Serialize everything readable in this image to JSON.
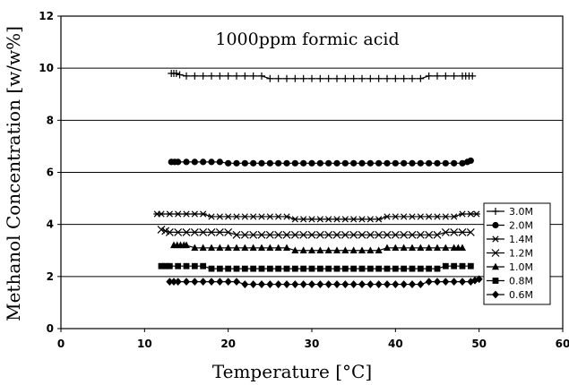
{
  "chart_data": {
    "type": "scatter",
    "title": "1000ppm formic acid",
    "xlabel": "Temperature [°C]",
    "ylabel": "Methanol Concentration [w/w%]",
    "xlim": [
      0,
      60
    ],
    "ylim": [
      0,
      12
    ],
    "x_ticks": [
      "0",
      "10",
      "20",
      "30",
      "40",
      "50",
      "60"
    ],
    "y_ticks": [
      "0",
      "2",
      "4",
      "6",
      "8",
      "10",
      "12"
    ],
    "grid": "horizontal",
    "legend_position": "right",
    "series": [
      {
        "name": "3.0M",
        "marker": "plus",
        "color": "#000000",
        "x": [
          13.2,
          13.5,
          13.8,
          14.2,
          15,
          16,
          17,
          18,
          19,
          20,
          21,
          22,
          23,
          24,
          25,
          26,
          27,
          28,
          29,
          30,
          31,
          32,
          33,
          34,
          35,
          36,
          37,
          38,
          39,
          40,
          41,
          42,
          43,
          44,
          45,
          46,
          47,
          48,
          48.4,
          48.8,
          49.2
        ],
        "y": [
          9.8,
          9.8,
          9.8,
          9.75,
          9.7,
          9.7,
          9.7,
          9.7,
          9.7,
          9.7,
          9.7,
          9.7,
          9.7,
          9.7,
          9.6,
          9.6,
          9.6,
          9.6,
          9.6,
          9.6,
          9.6,
          9.6,
          9.6,
          9.6,
          9.6,
          9.6,
          9.6,
          9.6,
          9.6,
          9.6,
          9.6,
          9.6,
          9.6,
          9.7,
          9.7,
          9.7,
          9.7,
          9.7,
          9.7,
          9.7,
          9.7
        ]
      },
      {
        "name": "2.0M",
        "marker": "circle",
        "color": "#000000",
        "x": [
          13.2,
          13.6,
          14,
          15,
          16,
          17,
          18,
          19,
          20,
          21,
          22,
          23,
          24,
          25,
          26,
          27,
          28,
          29,
          30,
          31,
          32,
          33,
          34,
          35,
          36,
          37,
          38,
          39,
          40,
          41,
          42,
          43,
          44,
          45,
          46,
          47,
          48,
          48.6,
          49
        ],
        "y": [
          6.4,
          6.4,
          6.4,
          6.4,
          6.4,
          6.4,
          6.4,
          6.4,
          6.35,
          6.35,
          6.35,
          6.35,
          6.35,
          6.35,
          6.35,
          6.35,
          6.35,
          6.35,
          6.35,
          6.35,
          6.35,
          6.35,
          6.35,
          6.35,
          6.35,
          6.35,
          6.35,
          6.35,
          6.35,
          6.35,
          6.35,
          6.35,
          6.35,
          6.35,
          6.35,
          6.35,
          6.35,
          6.4,
          6.45
        ]
      },
      {
        "name": "1.4M",
        "marker": "star",
        "color": "#000000",
        "x": [
          11.5,
          12,
          13,
          14,
          15,
          16,
          17,
          18,
          19,
          20,
          21,
          22,
          23,
          24,
          25,
          26,
          27,
          28,
          29,
          30,
          31,
          32,
          33,
          34,
          35,
          36,
          37,
          38,
          39,
          40,
          41,
          42,
          43,
          44,
          45,
          46,
          47,
          48,
          49,
          49.7
        ],
        "y": [
          4.4,
          4.4,
          4.4,
          4.4,
          4.4,
          4.4,
          4.4,
          4.3,
          4.3,
          4.3,
          4.3,
          4.3,
          4.3,
          4.3,
          4.3,
          4.3,
          4.3,
          4.2,
          4.2,
          4.2,
          4.2,
          4.2,
          4.2,
          4.2,
          4.2,
          4.2,
          4.2,
          4.2,
          4.3,
          4.3,
          4.3,
          4.3,
          4.3,
          4.3,
          4.3,
          4.3,
          4.3,
          4.4,
          4.4,
          4.4
        ]
      },
      {
        "name": "1.2M",
        "marker": "x",
        "color": "#000000",
        "x": [
          12,
          12.5,
          13,
          14,
          15,
          16,
          17,
          18,
          19,
          20,
          21,
          22,
          23,
          24,
          25,
          26,
          27,
          28,
          29,
          30,
          31,
          32,
          33,
          34,
          35,
          36,
          37,
          38,
          39,
          40,
          41,
          42,
          43,
          44,
          45,
          46,
          47,
          48,
          49
        ],
        "y": [
          3.8,
          3.75,
          3.7,
          3.7,
          3.7,
          3.7,
          3.7,
          3.7,
          3.7,
          3.7,
          3.6,
          3.6,
          3.6,
          3.6,
          3.6,
          3.6,
          3.6,
          3.6,
          3.6,
          3.6,
          3.6,
          3.6,
          3.6,
          3.6,
          3.6,
          3.6,
          3.6,
          3.6,
          3.6,
          3.6,
          3.6,
          3.6,
          3.6,
          3.6,
          3.6,
          3.7,
          3.7,
          3.7,
          3.7
        ]
      },
      {
        "name": "1.0M",
        "marker": "triangle",
        "color": "#000000",
        "x": [
          13.5,
          13.9,
          14.3,
          14.7,
          15,
          16,
          17,
          18,
          19,
          20,
          21,
          22,
          23,
          24,
          25,
          26,
          27,
          28,
          29,
          30,
          31,
          32,
          33,
          34,
          35,
          36,
          37,
          38,
          39,
          40,
          41,
          42,
          43,
          44,
          45,
          46,
          47,
          47.5,
          48
        ],
        "y": [
          3.2,
          3.2,
          3.2,
          3.2,
          3.2,
          3.1,
          3.1,
          3.1,
          3.1,
          3.1,
          3.1,
          3.1,
          3.1,
          3.1,
          3.1,
          3.1,
          3.1,
          3.0,
          3.0,
          3.0,
          3.0,
          3.0,
          3.0,
          3.0,
          3.0,
          3.0,
          3.0,
          3.0,
          3.1,
          3.1,
          3.1,
          3.1,
          3.1,
          3.1,
          3.1,
          3.1,
          3.1,
          3.1,
          3.1
        ]
      },
      {
        "name": "0.8M",
        "marker": "square",
        "color": "#000000",
        "x": [
          12,
          12.5,
          13,
          14,
          15,
          16,
          17,
          18,
          19,
          20,
          21,
          22,
          23,
          24,
          25,
          26,
          27,
          28,
          29,
          30,
          31,
          32,
          33,
          34,
          35,
          36,
          37,
          38,
          39,
          40,
          41,
          42,
          43,
          44,
          45,
          46,
          47,
          48,
          49
        ],
        "y": [
          2.4,
          2.4,
          2.4,
          2.4,
          2.4,
          2.4,
          2.4,
          2.3,
          2.3,
          2.3,
          2.3,
          2.3,
          2.3,
          2.3,
          2.3,
          2.3,
          2.3,
          2.3,
          2.3,
          2.3,
          2.3,
          2.3,
          2.3,
          2.3,
          2.3,
          2.3,
          2.3,
          2.3,
          2.3,
          2.3,
          2.3,
          2.3,
          2.3,
          2.3,
          2.3,
          2.4,
          2.4,
          2.4,
          2.4
        ]
      },
      {
        "name": "0.6M",
        "marker": "diamond",
        "color": "#000000",
        "x": [
          13,
          13.5,
          14,
          15,
          16,
          17,
          18,
          19,
          20,
          21,
          22,
          23,
          24,
          25,
          26,
          27,
          28,
          29,
          30,
          31,
          32,
          33,
          34,
          35,
          36,
          37,
          38,
          39,
          40,
          41,
          42,
          43,
          44,
          45,
          46,
          47,
          48,
          49,
          49.5,
          50
        ],
        "y": [
          1.8,
          1.8,
          1.8,
          1.8,
          1.8,
          1.8,
          1.8,
          1.8,
          1.8,
          1.8,
          1.7,
          1.7,
          1.7,
          1.7,
          1.7,
          1.7,
          1.7,
          1.7,
          1.7,
          1.7,
          1.7,
          1.7,
          1.7,
          1.7,
          1.7,
          1.7,
          1.7,
          1.7,
          1.7,
          1.7,
          1.7,
          1.7,
          1.8,
          1.8,
          1.8,
          1.8,
          1.8,
          1.8,
          1.85,
          1.9
        ]
      }
    ]
  }
}
